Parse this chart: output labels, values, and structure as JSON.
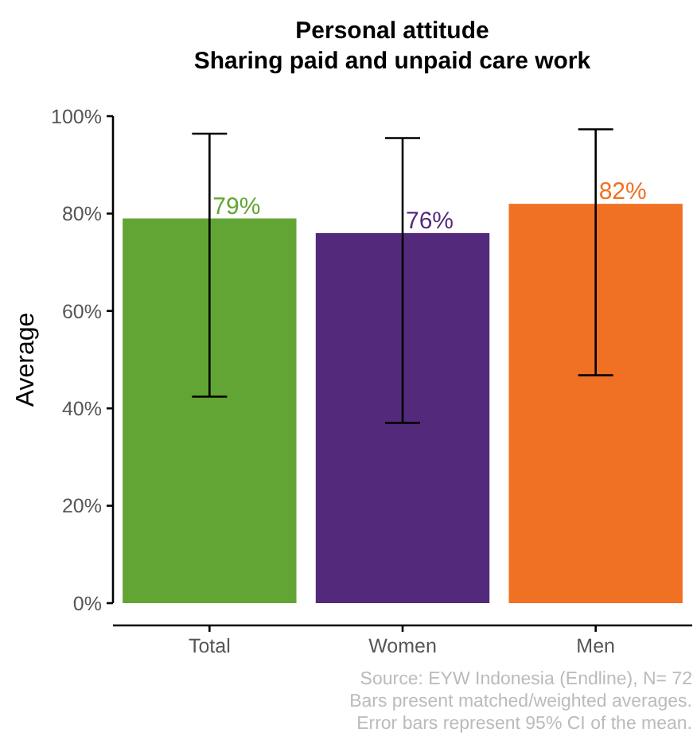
{
  "chart_data": {
    "type": "bar",
    "title": "Personal attitude\nSharing paid and unpaid care work",
    "ylabel": "Average",
    "categories": [
      "Total",
      "Women",
      "Men"
    ],
    "values": [
      79,
      76,
      82
    ],
    "colors": [
      "#62a534",
      "#532a7b",
      "#f07024"
    ],
    "value_labels": [
      "79%",
      "76%",
      "82%"
    ],
    "errors": [
      [
        42.4,
        96.4
      ],
      [
        37,
        95.5
      ],
      [
        46.8,
        97.3
      ]
    ],
    "ylim": [
      0,
      100
    ],
    "yticks": [
      {
        "value": 0,
        "label": "0%"
      },
      {
        "value": 20,
        "label": "20%"
      },
      {
        "value": 40,
        "label": "40%"
      },
      {
        "value": 60,
        "label": "60%"
      },
      {
        "value": 80,
        "label": "80%"
      },
      {
        "value": 100,
        "label": "100%"
      }
    ],
    "grid": false,
    "annotations": [
      "Source: EYW Indonesia (Endline), N= 72",
      "Bars present matched/weighted averages.",
      "Error bars represent 95% CI of the mean."
    ]
  }
}
